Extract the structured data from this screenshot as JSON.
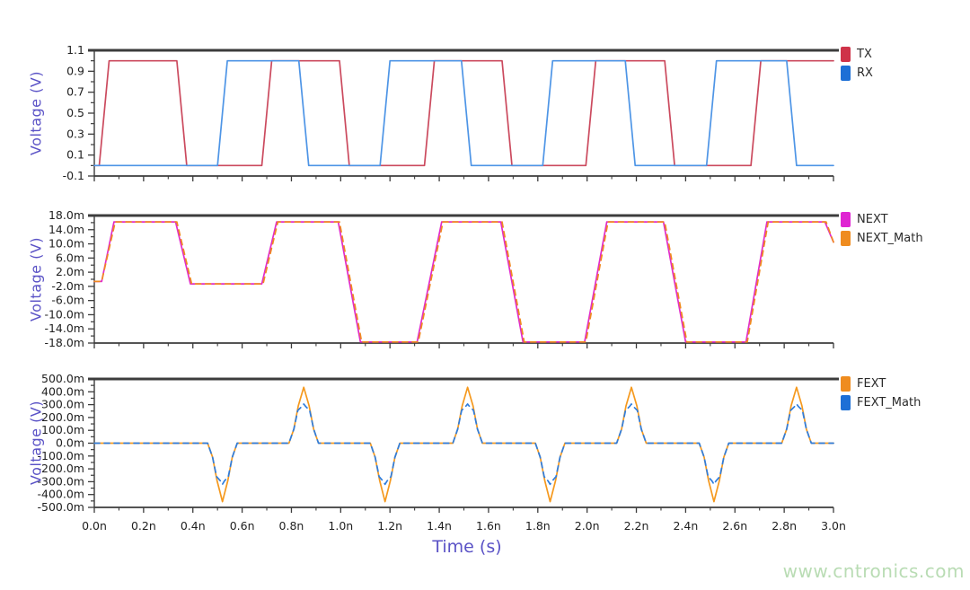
{
  "page": {
    "watermark": "www.cntronics.com",
    "watermark_color": "#b9dcb4",
    "background": "#ffffff",
    "axis_label_color": "#5a52c6",
    "tick_text_color": "#1f1f1f",
    "frame_color": "#3c3c3c"
  },
  "time_axis": {
    "label": "Time (s)",
    "unit": "ns",
    "range_ns": [
      0,
      3
    ],
    "major_values": [
      0,
      0.2,
      0.4,
      0.6,
      0.8,
      1.0,
      1.2,
      1.4,
      1.6,
      1.8,
      2.0,
      2.2,
      2.4,
      2.6,
      2.8,
      3.0
    ],
    "tick_labels": [
      "0.0n",
      "0.2n",
      "0.4n",
      "0.6n",
      "0.8n",
      "1.0n",
      "1.2n",
      "1.4n",
      "1.6n",
      "1.8n",
      "2.0n",
      "2.2n",
      "2.4n",
      "2.6n",
      "2.8n",
      "3.0n"
    ],
    "minor_values": [
      0.1,
      0.3,
      0.5,
      0.7,
      0.9,
      1.1,
      1.3,
      1.5,
      1.7,
      1.9,
      2.1,
      2.3,
      2.5,
      2.7,
      2.9
    ]
  },
  "chart_data": [
    {
      "type": "line",
      "title": "",
      "ylabel": "Voltage (V)",
      "xlabel": "Time (s)",
      "y_unit": "V",
      "xlim": [
        0,
        3
      ],
      "ylim": [
        -0.1,
        1.1
      ],
      "grid": false,
      "legend_position": "right-top",
      "y_ticks": [
        {
          "v": 1.1,
          "label": "1.1"
        },
        {
          "v": 0.9,
          "label": "0.9"
        },
        {
          "v": 0.7,
          "label": "0.7"
        },
        {
          "v": 0.5,
          "label": "0.5"
        },
        {
          "v": 0.3,
          "label": "0.3"
        },
        {
          "v": 0.1,
          "label": "0.1"
        },
        {
          "v": -0.1,
          "label": "-0.1"
        }
      ],
      "y_minor": [
        1.0,
        0.8,
        0.6,
        0.4,
        0.2,
        0.0
      ],
      "series": [
        {
          "name": "TX",
          "color": "#cb4a5e",
          "swatch": "#cf3349",
          "style": "solid",
          "points": [
            [
              0,
              0
            ],
            [
              0.02,
              0
            ],
            [
              0.06,
              1
            ],
            [
              0.335,
              1
            ],
            [
              0.375,
              0
            ],
            [
              0.68,
              0
            ],
            [
              0.72,
              1
            ],
            [
              0.995,
              1
            ],
            [
              1.035,
              0
            ],
            [
              1.34,
              0
            ],
            [
              1.38,
              1
            ],
            [
              1.655,
              1
            ],
            [
              1.695,
              0
            ],
            [
              1.995,
              0
            ],
            [
              2.035,
              1
            ],
            [
              2.315,
              1
            ],
            [
              2.355,
              0
            ],
            [
              2.665,
              0
            ],
            [
              2.705,
              1
            ],
            [
              3,
              1
            ]
          ]
        },
        {
          "name": "RX",
          "color": "#4e95e6",
          "swatch": "#1d6fd6",
          "style": "solid",
          "points": [
            [
              0,
              0
            ],
            [
              0.5,
              0
            ],
            [
              0.54,
              1
            ],
            [
              0.83,
              1
            ],
            [
              0.87,
              0
            ],
            [
              1.16,
              0
            ],
            [
              1.2,
              1
            ],
            [
              1.49,
              1
            ],
            [
              1.53,
              0
            ],
            [
              1.82,
              0
            ],
            [
              1.86,
              1
            ],
            [
              2.155,
              1
            ],
            [
              2.195,
              0
            ],
            [
              2.485,
              0
            ],
            [
              2.525,
              1
            ],
            [
              2.81,
              1
            ],
            [
              2.85,
              0
            ],
            [
              3,
              0
            ]
          ]
        }
      ]
    },
    {
      "type": "line",
      "title": "",
      "ylabel": "Voltage (V)",
      "xlabel": "Time (s)",
      "y_unit": "mV",
      "xlim": [
        0,
        3
      ],
      "ylim": [
        -18,
        18
      ],
      "grid": false,
      "legend_position": "right-top",
      "y_ticks": [
        {
          "v": 18,
          "label": "18.0m"
        },
        {
          "v": 14,
          "label": "14.0m"
        },
        {
          "v": 10,
          "label": "10.0m"
        },
        {
          "v": 6,
          "label": "6.0m"
        },
        {
          "v": 2,
          "label": "2.0m"
        },
        {
          "v": -2,
          "label": "-2.0m"
        },
        {
          "v": -6,
          "label": "-6.0m"
        },
        {
          "v": -10,
          "label": "-10.0m"
        },
        {
          "v": -14,
          "label": "-14.0m"
        },
        {
          "v": -18,
          "label": "-18.0m"
        }
      ],
      "y_minor": [
        16,
        12,
        8,
        4,
        0,
        -4,
        -8,
        -12,
        -16
      ],
      "series": [
        {
          "name": "NEXT",
          "color": "#e12cc9",
          "swatch": "#df25d2",
          "style": "solid",
          "points": [
            [
              0,
              -0.6
            ],
            [
              0.03,
              -0.6
            ],
            [
              0.08,
              16.2
            ],
            [
              0.33,
              16.2
            ],
            [
              0.39,
              -1.3
            ],
            [
              0.68,
              -1.3
            ],
            [
              0.74,
              16.2
            ],
            [
              0.99,
              16.2
            ],
            [
              1.08,
              -17.7
            ],
            [
              1.31,
              -17.7
            ],
            [
              1.41,
              16.2
            ],
            [
              1.65,
              16.2
            ],
            [
              1.74,
              -17.7
            ],
            [
              1.99,
              -17.7
            ],
            [
              2.08,
              16.2
            ],
            [
              2.31,
              16.2
            ],
            [
              2.4,
              -17.7
            ],
            [
              2.645,
              -17.7
            ],
            [
              2.73,
              16.2
            ],
            [
              2.965,
              16.2
            ],
            [
              3,
              10.5
            ]
          ]
        },
        {
          "name": "NEXT_Math",
          "color": "#f08a20",
          "swatch": "#ef8c1f",
          "style": "dashed",
          "points": [
            [
              0,
              -0.6
            ],
            [
              0.03,
              -0.6
            ],
            [
              0.085,
              16.2
            ],
            [
              0.335,
              16.2
            ],
            [
              0.395,
              -1.3
            ],
            [
              0.685,
              -1.3
            ],
            [
              0.745,
              16.2
            ],
            [
              0.995,
              16.2
            ],
            [
              1.085,
              -17.7
            ],
            [
              1.315,
              -17.7
            ],
            [
              1.415,
              16.2
            ],
            [
              1.655,
              16.2
            ],
            [
              1.745,
              -17.7
            ],
            [
              1.995,
              -17.7
            ],
            [
              2.085,
              16.2
            ],
            [
              2.315,
              16.2
            ],
            [
              2.405,
              -17.7
            ],
            [
              2.65,
              -17.7
            ],
            [
              2.735,
              16.2
            ],
            [
              2.97,
              16.2
            ],
            [
              3,
              10.5
            ]
          ]
        }
      ]
    },
    {
      "type": "line",
      "title": "",
      "ylabel": "Voltage (V)",
      "xlabel": "Time (s)",
      "y_unit": "mV",
      "xlim": [
        0,
        3
      ],
      "ylim": [
        -500,
        500
      ],
      "grid": false,
      "legend_position": "right-top",
      "spike_times_ns": {
        "negative": [
          0.52,
          1.18,
          1.85,
          2.515
        ],
        "positive": [
          0.85,
          1.515,
          2.18,
          2.85
        ]
      },
      "y_ticks": [
        {
          "v": 500,
          "label": "500.0m"
        },
        {
          "v": 400,
          "label": "400.0m"
        },
        {
          "v": 300,
          "label": "300.0m"
        },
        {
          "v": 200,
          "label": "200.0m"
        },
        {
          "v": 100,
          "label": "100.0m"
        },
        {
          "v": 0,
          "label": "0.0m"
        },
        {
          "v": -100,
          "label": "-100.0m"
        },
        {
          "v": -200,
          "label": "-200.0m"
        },
        {
          "v": -300,
          "label": "-300.0m"
        },
        {
          "v": -400,
          "label": "-400.0m"
        },
        {
          "v": -500,
          "label": "-500.0m"
        }
      ],
      "y_minor": [
        450,
        350,
        250,
        150,
        50,
        -50,
        -150,
        -250,
        -350,
        -450
      ],
      "series": [
        {
          "name": "FEXT",
          "color": "#f5991e",
          "swatch": "#ef8c1f",
          "style": "solid",
          "points": [
            [
              0,
              0
            ],
            [
              0.46,
              0
            ],
            [
              0.48,
              -110
            ],
            [
              0.498,
              -290
            ],
            [
              0.52,
              -455
            ],
            [
              0.542,
              -290
            ],
            [
              0.56,
              -110
            ],
            [
              0.58,
              0
            ],
            [
              0.79,
              0
            ],
            [
              0.81,
              110
            ],
            [
              0.828,
              290
            ],
            [
              0.85,
              435
            ],
            [
              0.872,
              290
            ],
            [
              0.89,
              110
            ],
            [
              0.91,
              0
            ],
            [
              1.12,
              0
            ],
            [
              1.14,
              -110
            ],
            [
              1.158,
              -290
            ],
            [
              1.18,
              -455
            ],
            [
              1.202,
              -290
            ],
            [
              1.22,
              -110
            ],
            [
              1.24,
              0
            ],
            [
              1.455,
              0
            ],
            [
              1.475,
              110
            ],
            [
              1.493,
              290
            ],
            [
              1.515,
              435
            ],
            [
              1.537,
              290
            ],
            [
              1.555,
              110
            ],
            [
              1.575,
              0
            ],
            [
              1.79,
              0
            ],
            [
              1.81,
              -110
            ],
            [
              1.828,
              -290
            ],
            [
              1.85,
              -455
            ],
            [
              1.872,
              -290
            ],
            [
              1.89,
              -110
            ],
            [
              1.91,
              0
            ],
            [
              2.12,
              0
            ],
            [
              2.14,
              110
            ],
            [
              2.158,
              290
            ],
            [
              2.18,
              435
            ],
            [
              2.202,
              290
            ],
            [
              2.22,
              110
            ],
            [
              2.24,
              0
            ],
            [
              2.455,
              0
            ],
            [
              2.475,
              -110
            ],
            [
              2.493,
              -290
            ],
            [
              2.515,
              -455
            ],
            [
              2.537,
              -290
            ],
            [
              2.555,
              -110
            ],
            [
              2.575,
              0
            ],
            [
              2.79,
              0
            ],
            [
              2.81,
              110
            ],
            [
              2.828,
              290
            ],
            [
              2.85,
              435
            ],
            [
              2.872,
              290
            ],
            [
              2.89,
              110
            ],
            [
              2.91,
              0
            ],
            [
              3,
              0
            ]
          ]
        },
        {
          "name": "FEXT_Math",
          "color": "#2f7ddd",
          "swatch": "#1d6fd6",
          "style": "dashed",
          "points": [
            [
              0,
              0
            ],
            [
              0.46,
              0
            ],
            [
              0.48,
              -110
            ],
            [
              0.496,
              -260
            ],
            [
              0.512,
              -295
            ],
            [
              0.52,
              -320
            ],
            [
              0.528,
              -295
            ],
            [
              0.544,
              -260
            ],
            [
              0.56,
              -110
            ],
            [
              0.58,
              0
            ],
            [
              0.79,
              0
            ],
            [
              0.81,
              110
            ],
            [
              0.826,
              255
            ],
            [
              0.842,
              285
            ],
            [
              0.85,
              305
            ],
            [
              0.858,
              285
            ],
            [
              0.874,
              255
            ],
            [
              0.89,
              110
            ],
            [
              0.91,
              0
            ],
            [
              1.12,
              0
            ],
            [
              1.14,
              -110
            ],
            [
              1.156,
              -260
            ],
            [
              1.172,
              -295
            ],
            [
              1.18,
              -320
            ],
            [
              1.188,
              -295
            ],
            [
              1.204,
              -260
            ],
            [
              1.22,
              -110
            ],
            [
              1.24,
              0
            ],
            [
              1.455,
              0
            ],
            [
              1.475,
              110
            ],
            [
              1.491,
              255
            ],
            [
              1.507,
              285
            ],
            [
              1.515,
              305
            ],
            [
              1.523,
              285
            ],
            [
              1.539,
              255
            ],
            [
              1.555,
              110
            ],
            [
              1.575,
              0
            ],
            [
              1.79,
              0
            ],
            [
              1.81,
              -110
            ],
            [
              1.826,
              -260
            ],
            [
              1.842,
              -295
            ],
            [
              1.85,
              -320
            ],
            [
              1.858,
              -295
            ],
            [
              1.874,
              -260
            ],
            [
              1.89,
              -110
            ],
            [
              1.91,
              0
            ],
            [
              2.12,
              0
            ],
            [
              2.14,
              110
            ],
            [
              2.156,
              255
            ],
            [
              2.172,
              285
            ],
            [
              2.18,
              305
            ],
            [
              2.188,
              285
            ],
            [
              2.204,
              255
            ],
            [
              2.22,
              110
            ],
            [
              2.24,
              0
            ],
            [
              2.455,
              0
            ],
            [
              2.475,
              -110
            ],
            [
              2.491,
              -260
            ],
            [
              2.507,
              -295
            ],
            [
              2.515,
              -320
            ],
            [
              2.523,
              -295
            ],
            [
              2.539,
              -260
            ],
            [
              2.555,
              -110
            ],
            [
              2.575,
              0
            ],
            [
              2.79,
              0
            ],
            [
              2.81,
              110
            ],
            [
              2.826,
              255
            ],
            [
              2.842,
              285
            ],
            [
              2.85,
              305
            ],
            [
              2.858,
              285
            ],
            [
              2.874,
              255
            ],
            [
              2.89,
              110
            ],
            [
              2.91,
              0
            ],
            [
              3,
              0
            ]
          ]
        }
      ]
    }
  ]
}
